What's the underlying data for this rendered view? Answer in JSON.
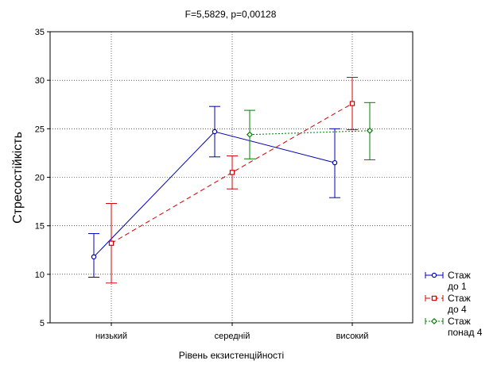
{
  "chart_data": {
    "type": "line",
    "title": "F=5,5829, p=0,00128",
    "xlabel": "Рівень екзистенційності",
    "ylabel": "Стресостійкість",
    "categories": [
      "низький",
      "середній",
      "високий"
    ],
    "ylim": [
      5,
      35
    ],
    "yticks": [
      5,
      10,
      15,
      20,
      25,
      30,
      35
    ],
    "grid": true,
    "legend_position": "bottom-right",
    "series": [
      {
        "name_lines": [
          "Стаж",
          "до 1"
        ],
        "color": "#0000b4",
        "line_style": "solid",
        "marker": "circle",
        "values": [
          11.8,
          24.7,
          21.5
        ],
        "err_low": [
          9.7,
          22.1,
          17.9
        ],
        "err_high": [
          14.2,
          27.3,
          25.0
        ]
      },
      {
        "name_lines": [
          "Стаж",
          "до 4"
        ],
        "color": "#d40000",
        "line_style": "dashed",
        "marker": "square",
        "values": [
          13.2,
          20.5,
          27.6
        ],
        "err_low": [
          9.1,
          18.8,
          24.9
        ],
        "err_high": [
          17.3,
          22.2,
          30.3
        ]
      },
      {
        "name_lines": [
          "Стаж",
          "понад 4"
        ],
        "color": "#008000",
        "line_style": "dotted",
        "marker": "diamond",
        "values": [
          null,
          24.4,
          24.8
        ],
        "err_low": [
          null,
          21.9,
          21.8
        ],
        "err_high": [
          null,
          26.9,
          27.7
        ]
      }
    ]
  }
}
